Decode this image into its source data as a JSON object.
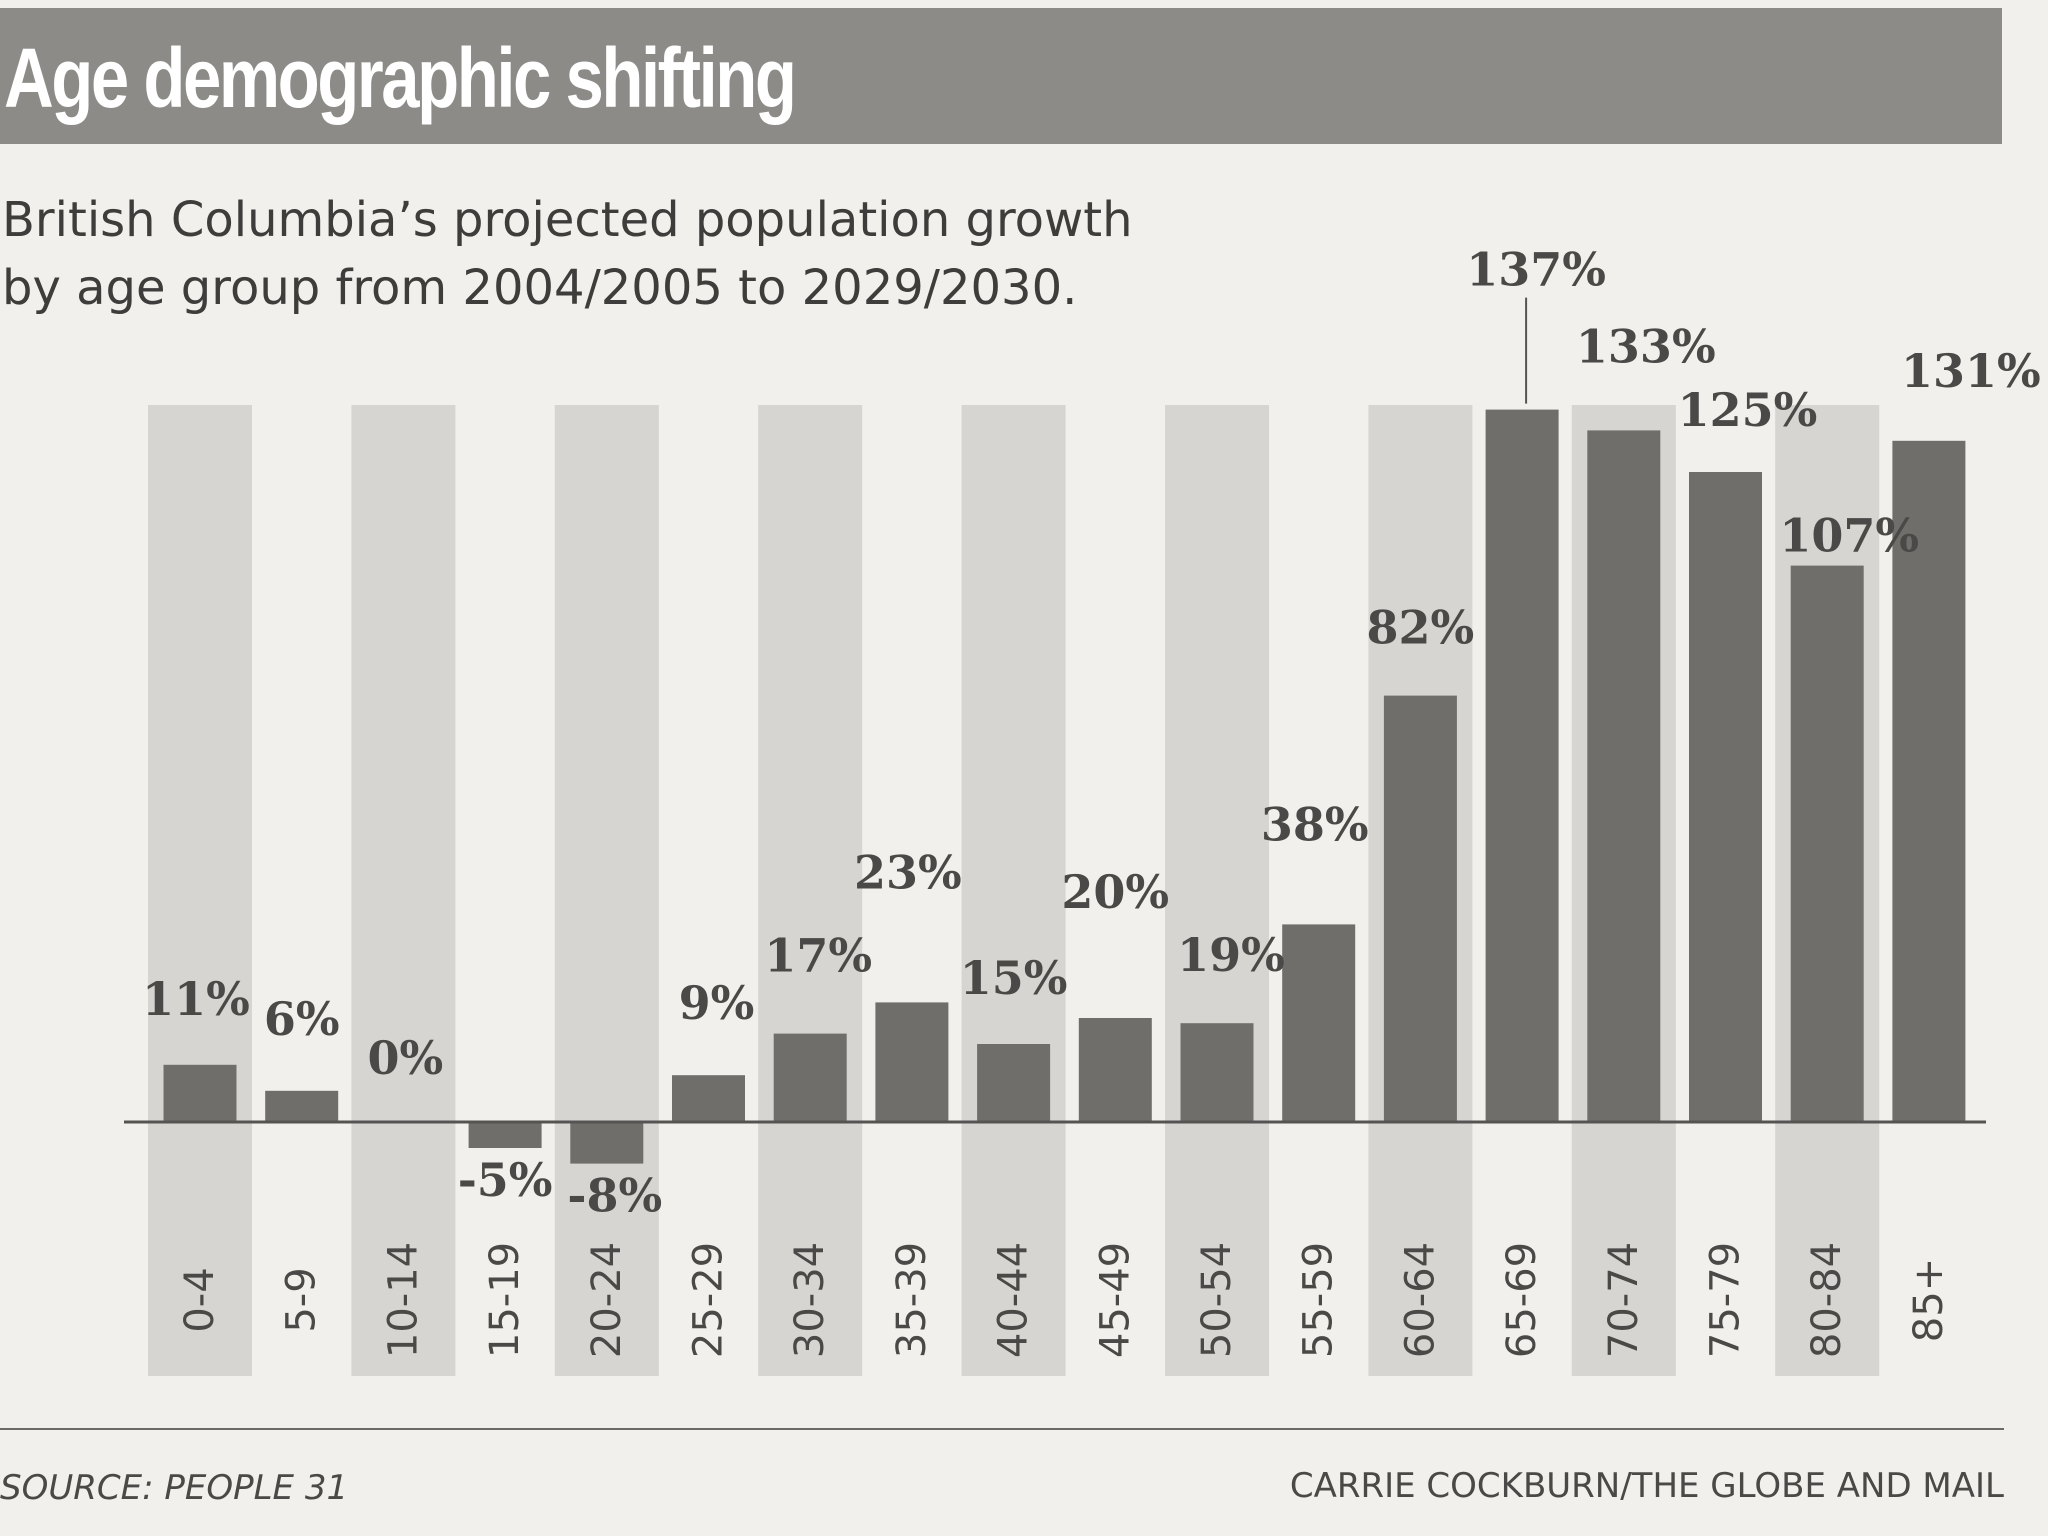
{
  "chart_data": {
    "type": "bar",
    "title": "Age demographic shifting",
    "subtitle": [
      "British Columbia’s projected population growth",
      "by age group from 2004/2005 to 2029/2030."
    ],
    "categories": [
      "0-4",
      "5-9",
      "10-14",
      "15-19",
      "20-24",
      "25-29",
      "30-34",
      "35-39",
      "40-44",
      "45-49",
      "50-54",
      "55-59",
      "60-64",
      "65-69",
      "70-74",
      "75-79",
      "80-84",
      "85+"
    ],
    "values": [
      11,
      6,
      0,
      -5,
      -8,
      9,
      17,
      23,
      15,
      20,
      19,
      38,
      82,
      137,
      133,
      125,
      107,
      131
    ],
    "value_labels": [
      "11%",
      "6%",
      "0%",
      "-5%",
      "-8%",
      "9%",
      "17%",
      "23%",
      "15%",
      "20%",
      "19%",
      "38%",
      "82%",
      "137%",
      "133%",
      "125%",
      "107%",
      "131%"
    ],
    "ylim": [
      -10,
      140
    ],
    "xlabel": "",
    "ylabel": "",
    "grid": false,
    "source": "SOURCE: PEOPLE 31",
    "credit": "CARRIE COCKBURN/THE GLOBE AND MAIL"
  },
  "colors": {
    "background": "#f2f0ec",
    "title_bar": "#8c8b88",
    "title_text": "#ffffff",
    "bar": "#6f6e6b",
    "stripe": "#d6d5d1",
    "text": "#4a4947",
    "axis": "#555452"
  }
}
